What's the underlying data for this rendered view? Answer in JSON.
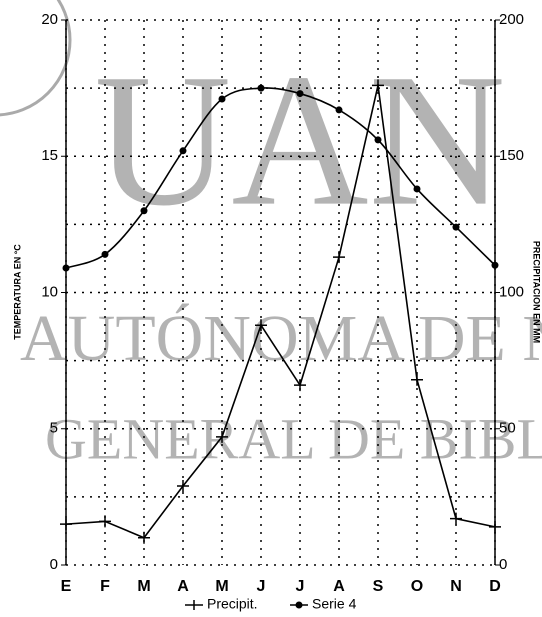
{
  "chart_data": {
    "type": "line",
    "categories": [
      "E",
      "F",
      "M",
      "A",
      "M",
      "J",
      "J",
      "A",
      "S",
      "O",
      "N",
      "D"
    ],
    "series": [
      {
        "name": "Precipit.",
        "color": "#000000",
        "axis": "y2",
        "marker": "plus",
        "smooth": false,
        "values": [
          15,
          16,
          10,
          29,
          47,
          88,
          66,
          113,
          176,
          68,
          17,
          14
        ]
      },
      {
        "name": "Serie 4",
        "color": "#000000",
        "marker": "circle",
        "smooth": true,
        "values": [
          10.9,
          11.4,
          13.0,
          15.2,
          17.1,
          17.5,
          17.3,
          16.7,
          15.6,
          13.8,
          12.4,
          11.0
        ]
      }
    ],
    "ylim": [
      0,
      20
    ],
    "yticks": [
      0,
      5,
      10,
      15,
      20
    ],
    "y_minor_ticks": [
      2.5,
      7.5,
      12.5,
      17.5
    ],
    "y2lim": [
      0,
      200
    ],
    "y2ticks": [
      0,
      50,
      100,
      150,
      200
    ],
    "ylabel": "TEMPERATURA EN °C",
    "y2label": "PRECIPITACION EN MM",
    "grid": true,
    "legend": "bottom",
    "annotations": [
      "UAN",
      "AUTÓNOMA DE NU",
      "GENERAL DE BIBLIOT"
    ]
  }
}
